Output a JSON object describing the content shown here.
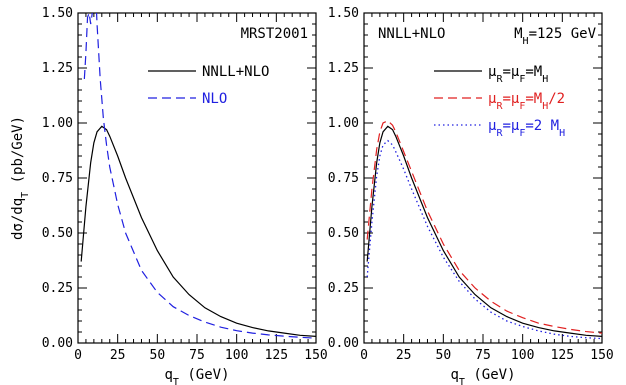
{
  "chart_data": [
    {
      "type": "line",
      "xlabel": "q_T (GeV)",
      "ylabel": "dσ/dq_T (pb/GeV)",
      "xlim": [
        0,
        150
      ],
      "ylim": [
        0,
        1.5
      ],
      "xticks": [
        "0",
        "25",
        "50",
        "75",
        "100",
        "125",
        "150"
      ],
      "yticks": [
        "0.00",
        "0.25",
        "0.50",
        "0.75",
        "1.00",
        "1.25",
        "1.50"
      ],
      "annotation": "MRST2001",
      "legend_position": "top-right",
      "series": [
        {
          "name": "NNLL+NLO",
          "color": "#000000",
          "style": "solid",
          "x": [
            2,
            5,
            8,
            10,
            12,
            15,
            18,
            20,
            25,
            30,
            40,
            50,
            60,
            70,
            80,
            90,
            100,
            110,
            120,
            130,
            140,
            150
          ],
          "y": [
            0.37,
            0.62,
            0.82,
            0.91,
            0.96,
            0.985,
            0.97,
            0.94,
            0.85,
            0.75,
            0.57,
            0.42,
            0.3,
            0.22,
            0.16,
            0.12,
            0.09,
            0.07,
            0.055,
            0.045,
            0.035,
            0.03
          ]
        },
        {
          "name": "NLO",
          "color": "#2020e0",
          "style": "dashed",
          "x": [
            4,
            5,
            6,
            7,
            8,
            9,
            10,
            11,
            12,
            14,
            16,
            18,
            20,
            25,
            30,
            40,
            50,
            60,
            70,
            80,
            90,
            100,
            110,
            120,
            130,
            140,
            150
          ],
          "y": [
            1.2,
            1.32,
            1.48,
            1.5,
            1.45,
            1.5,
            1.52,
            1.62,
            1.45,
            1.2,
            1.02,
            0.9,
            0.8,
            0.63,
            0.5,
            0.33,
            0.23,
            0.165,
            0.125,
            0.095,
            0.072,
            0.056,
            0.045,
            0.037,
            0.031,
            0.026,
            0.022
          ]
        }
      ]
    },
    {
      "type": "line",
      "xlabel": "q_T (GeV)",
      "ylabel": "",
      "xlim": [
        0,
        150
      ],
      "ylim": [
        0,
        1.5
      ],
      "xticks": [
        "0",
        "25",
        "50",
        "75",
        "100",
        "125",
        "150"
      ],
      "yticks": [
        "0.00",
        "0.25",
        "0.50",
        "0.75",
        "1.00",
        "1.25",
        "1.50"
      ],
      "annotation": "NNLL+NLO",
      "annotation2": "M_H=125 GeV",
      "legend_position": "top-right",
      "series": [
        {
          "name": "μ_R=μ_F=M_H",
          "color": "#000000",
          "style": "solid",
          "x": [
            2,
            5,
            8,
            10,
            12,
            15,
            18,
            20,
            25,
            30,
            40,
            50,
            60,
            70,
            80,
            90,
            100,
            110,
            120,
            130,
            140,
            150
          ],
          "y": [
            0.37,
            0.62,
            0.82,
            0.91,
            0.96,
            0.985,
            0.97,
            0.94,
            0.85,
            0.75,
            0.57,
            0.42,
            0.3,
            0.22,
            0.16,
            0.12,
            0.09,
            0.07,
            0.055,
            0.045,
            0.035,
            0.03
          ]
        },
        {
          "name": "μ_R=μ_F=M_H/2",
          "color": "#e02020",
          "style": "dashed",
          "x": [
            2,
            5,
            8,
            10,
            12,
            15,
            18,
            20,
            25,
            30,
            40,
            50,
            60,
            70,
            80,
            90,
            100,
            110,
            120,
            130,
            140,
            150
          ],
          "y": [
            0.47,
            0.7,
            0.88,
            0.96,
            1.0,
            1.01,
            0.99,
            0.96,
            0.87,
            0.78,
            0.6,
            0.45,
            0.33,
            0.25,
            0.19,
            0.145,
            0.115,
            0.09,
            0.075,
            0.062,
            0.052,
            0.045
          ]
        },
        {
          "name": "μ_R=μ_F=2 M_H",
          "color": "#2020e0",
          "style": "dotted",
          "x": [
            2,
            5,
            8,
            10,
            12,
            15,
            18,
            20,
            25,
            30,
            40,
            50,
            60,
            70,
            80,
            90,
            100,
            110,
            120,
            130,
            140,
            150
          ],
          "y": [
            0.3,
            0.55,
            0.76,
            0.85,
            0.9,
            0.92,
            0.9,
            0.87,
            0.79,
            0.7,
            0.53,
            0.39,
            0.28,
            0.2,
            0.14,
            0.1,
            0.075,
            0.055,
            0.04,
            0.03,
            0.024,
            0.02
          ]
        }
      ]
    }
  ]
}
